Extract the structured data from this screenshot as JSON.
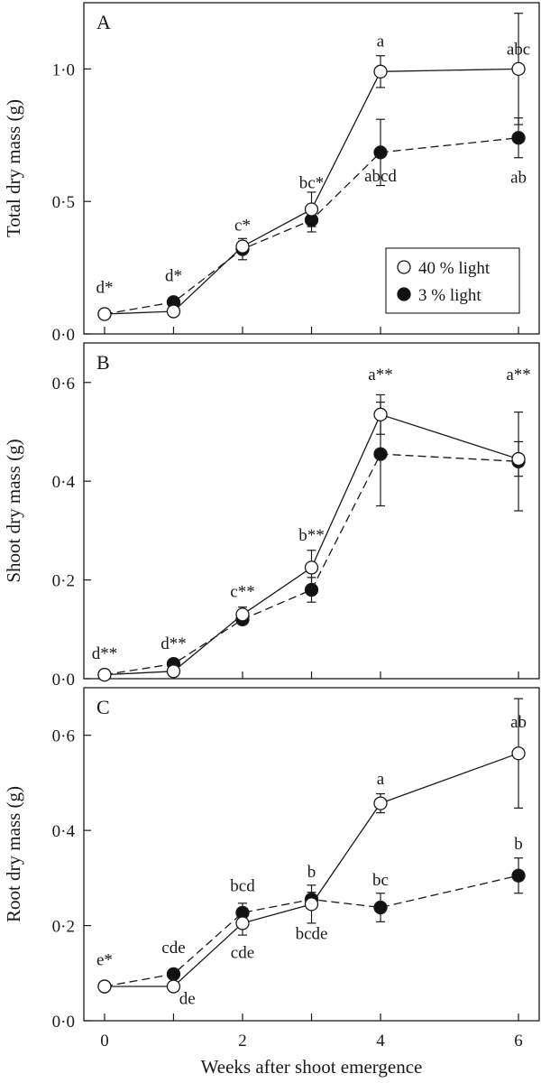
{
  "chart_data": [
    {
      "type": "line",
      "panel": "A",
      "ylabel": "Total dry mass (g)",
      "ylim": [
        0,
        1.25
      ],
      "yticks": [
        0,
        0.5,
        1.0
      ],
      "ytick_labels": [
        "0·0",
        "0·5",
        "1·0"
      ],
      "x": [
        0,
        1,
        2,
        3,
        4,
        6
      ],
      "series": [
        {
          "name": "40 % light",
          "marker": "open-circle",
          "line": "solid",
          "values": [
            0.075,
            0.085,
            0.33,
            0.47,
            0.99,
            1.0
          ],
          "errors": [
            0.01,
            0.01,
            0.02,
            0.065,
            0.06,
            0.21
          ]
        },
        {
          "name": "3 % light",
          "marker": "filled-circle",
          "line": "dashed",
          "values": [
            0.075,
            0.12,
            0.32,
            0.43,
            0.685,
            0.74
          ],
          "errors": [
            0.01,
            0.01,
            0.04,
            0.045,
            0.125,
            0.075
          ]
        }
      ],
      "annotations": [
        {
          "text": "d*",
          "x": 0,
          "y": 0.155
        },
        {
          "text": "d*",
          "x": 1,
          "y": 0.2
        },
        {
          "text": "c*",
          "x": 2,
          "y": 0.39
        },
        {
          "text": "bc*",
          "x": 3,
          "y": 0.55
        },
        {
          "text": "a",
          "x": 4,
          "y": 1.085
        },
        {
          "text": "abcd",
          "x": 4,
          "y": 0.575
        },
        {
          "text": "abc",
          "x": 6,
          "y": 1.055
        },
        {
          "text": "ab",
          "x": 6,
          "y": 0.57
        }
      ],
      "legend_position": "bottom-right"
    },
    {
      "type": "line",
      "panel": "B",
      "ylabel": "Shoot dry mass (g)",
      "ylim": [
        0,
        0.68
      ],
      "yticks": [
        0,
        0.2,
        0.4,
        0.6
      ],
      "ytick_labels": [
        "0·0",
        "0·2",
        "0·4",
        "0·6"
      ],
      "x": [
        0,
        1,
        2,
        3,
        4,
        6
      ],
      "series": [
        {
          "name": "40 % light",
          "marker": "open-circle",
          "line": "solid",
          "values": [
            0.008,
            0.015,
            0.13,
            0.225,
            0.535,
            0.445
          ],
          "errors": [
            0.004,
            0.006,
            0.015,
            0.035,
            0.04,
            0.035
          ]
        },
        {
          "name": "3 % light",
          "marker": "filled-circle",
          "line": "dashed",
          "values": [
            0.008,
            0.03,
            0.12,
            0.18,
            0.455,
            0.44
          ],
          "errors": [
            0.004,
            0.006,
            0.01,
            0.025,
            0.105,
            0.1
          ]
        }
      ],
      "annotations": [
        {
          "text": "d**",
          "x": 0,
          "y": 0.04
        },
        {
          "text": "d**",
          "x": 1,
          "y": 0.06
        },
        {
          "text": "c**",
          "x": 2,
          "y": 0.165
        },
        {
          "text": "b**",
          "x": 3,
          "y": 0.28
        },
        {
          "text": "a**",
          "x": 4,
          "y": 0.605
        },
        {
          "text": "a**",
          "x": 6,
          "y": 0.605
        }
      ]
    },
    {
      "type": "line",
      "panel": "C",
      "ylabel": "Root dry mass (g)",
      "xlabel": "Weeks after shoot emergence",
      "ylim": [
        0,
        0.7
      ],
      "yticks": [
        0,
        0.2,
        0.4,
        0.6
      ],
      "ytick_labels": [
        "0·0",
        "0·2",
        "0·4",
        "0·6"
      ],
      "xticks": [
        0,
        2,
        4,
        6
      ],
      "xlim": [
        -0.3,
        6.3
      ],
      "x": [
        0,
        1,
        2,
        3,
        4,
        6
      ],
      "series": [
        {
          "name": "40 % light",
          "marker": "open-circle",
          "line": "solid",
          "values": [
            0.072,
            0.072,
            0.205,
            0.245,
            0.457,
            0.562
          ],
          "errors": [
            0.005,
            0.005,
            0.025,
            0.04,
            0.02,
            0.115
          ]
        },
        {
          "name": "3 % light",
          "marker": "filled-circle",
          "line": "dashed",
          "values": [
            0.072,
            0.098,
            0.227,
            0.255,
            0.238,
            0.305
          ],
          "errors": [
            0.005,
            0.005,
            0.02,
            0.015,
            0.03,
            0.037
          ]
        }
      ],
      "annotations": [
        {
          "text": "e*",
          "x": 0,
          "y": 0.117
        },
        {
          "text": "cde",
          "x": 1,
          "y": 0.142
        },
        {
          "text": "de",
          "x": 1.2,
          "y": 0.035
        },
        {
          "text": "bcd",
          "x": 2,
          "y": 0.272
        },
        {
          "text": "cde",
          "x": 2,
          "y": 0.132
        },
        {
          "text": "b",
          "x": 3,
          "y": 0.302
        },
        {
          "text": "bcde",
          "x": 3,
          "y": 0.172
        },
        {
          "text": "a",
          "x": 4,
          "y": 0.497
        },
        {
          "text": "bc",
          "x": 4,
          "y": 0.285
        },
        {
          "text": "ab",
          "x": 6,
          "y": 0.617
        },
        {
          "text": "b",
          "x": 6,
          "y": 0.36
        }
      ]
    }
  ]
}
